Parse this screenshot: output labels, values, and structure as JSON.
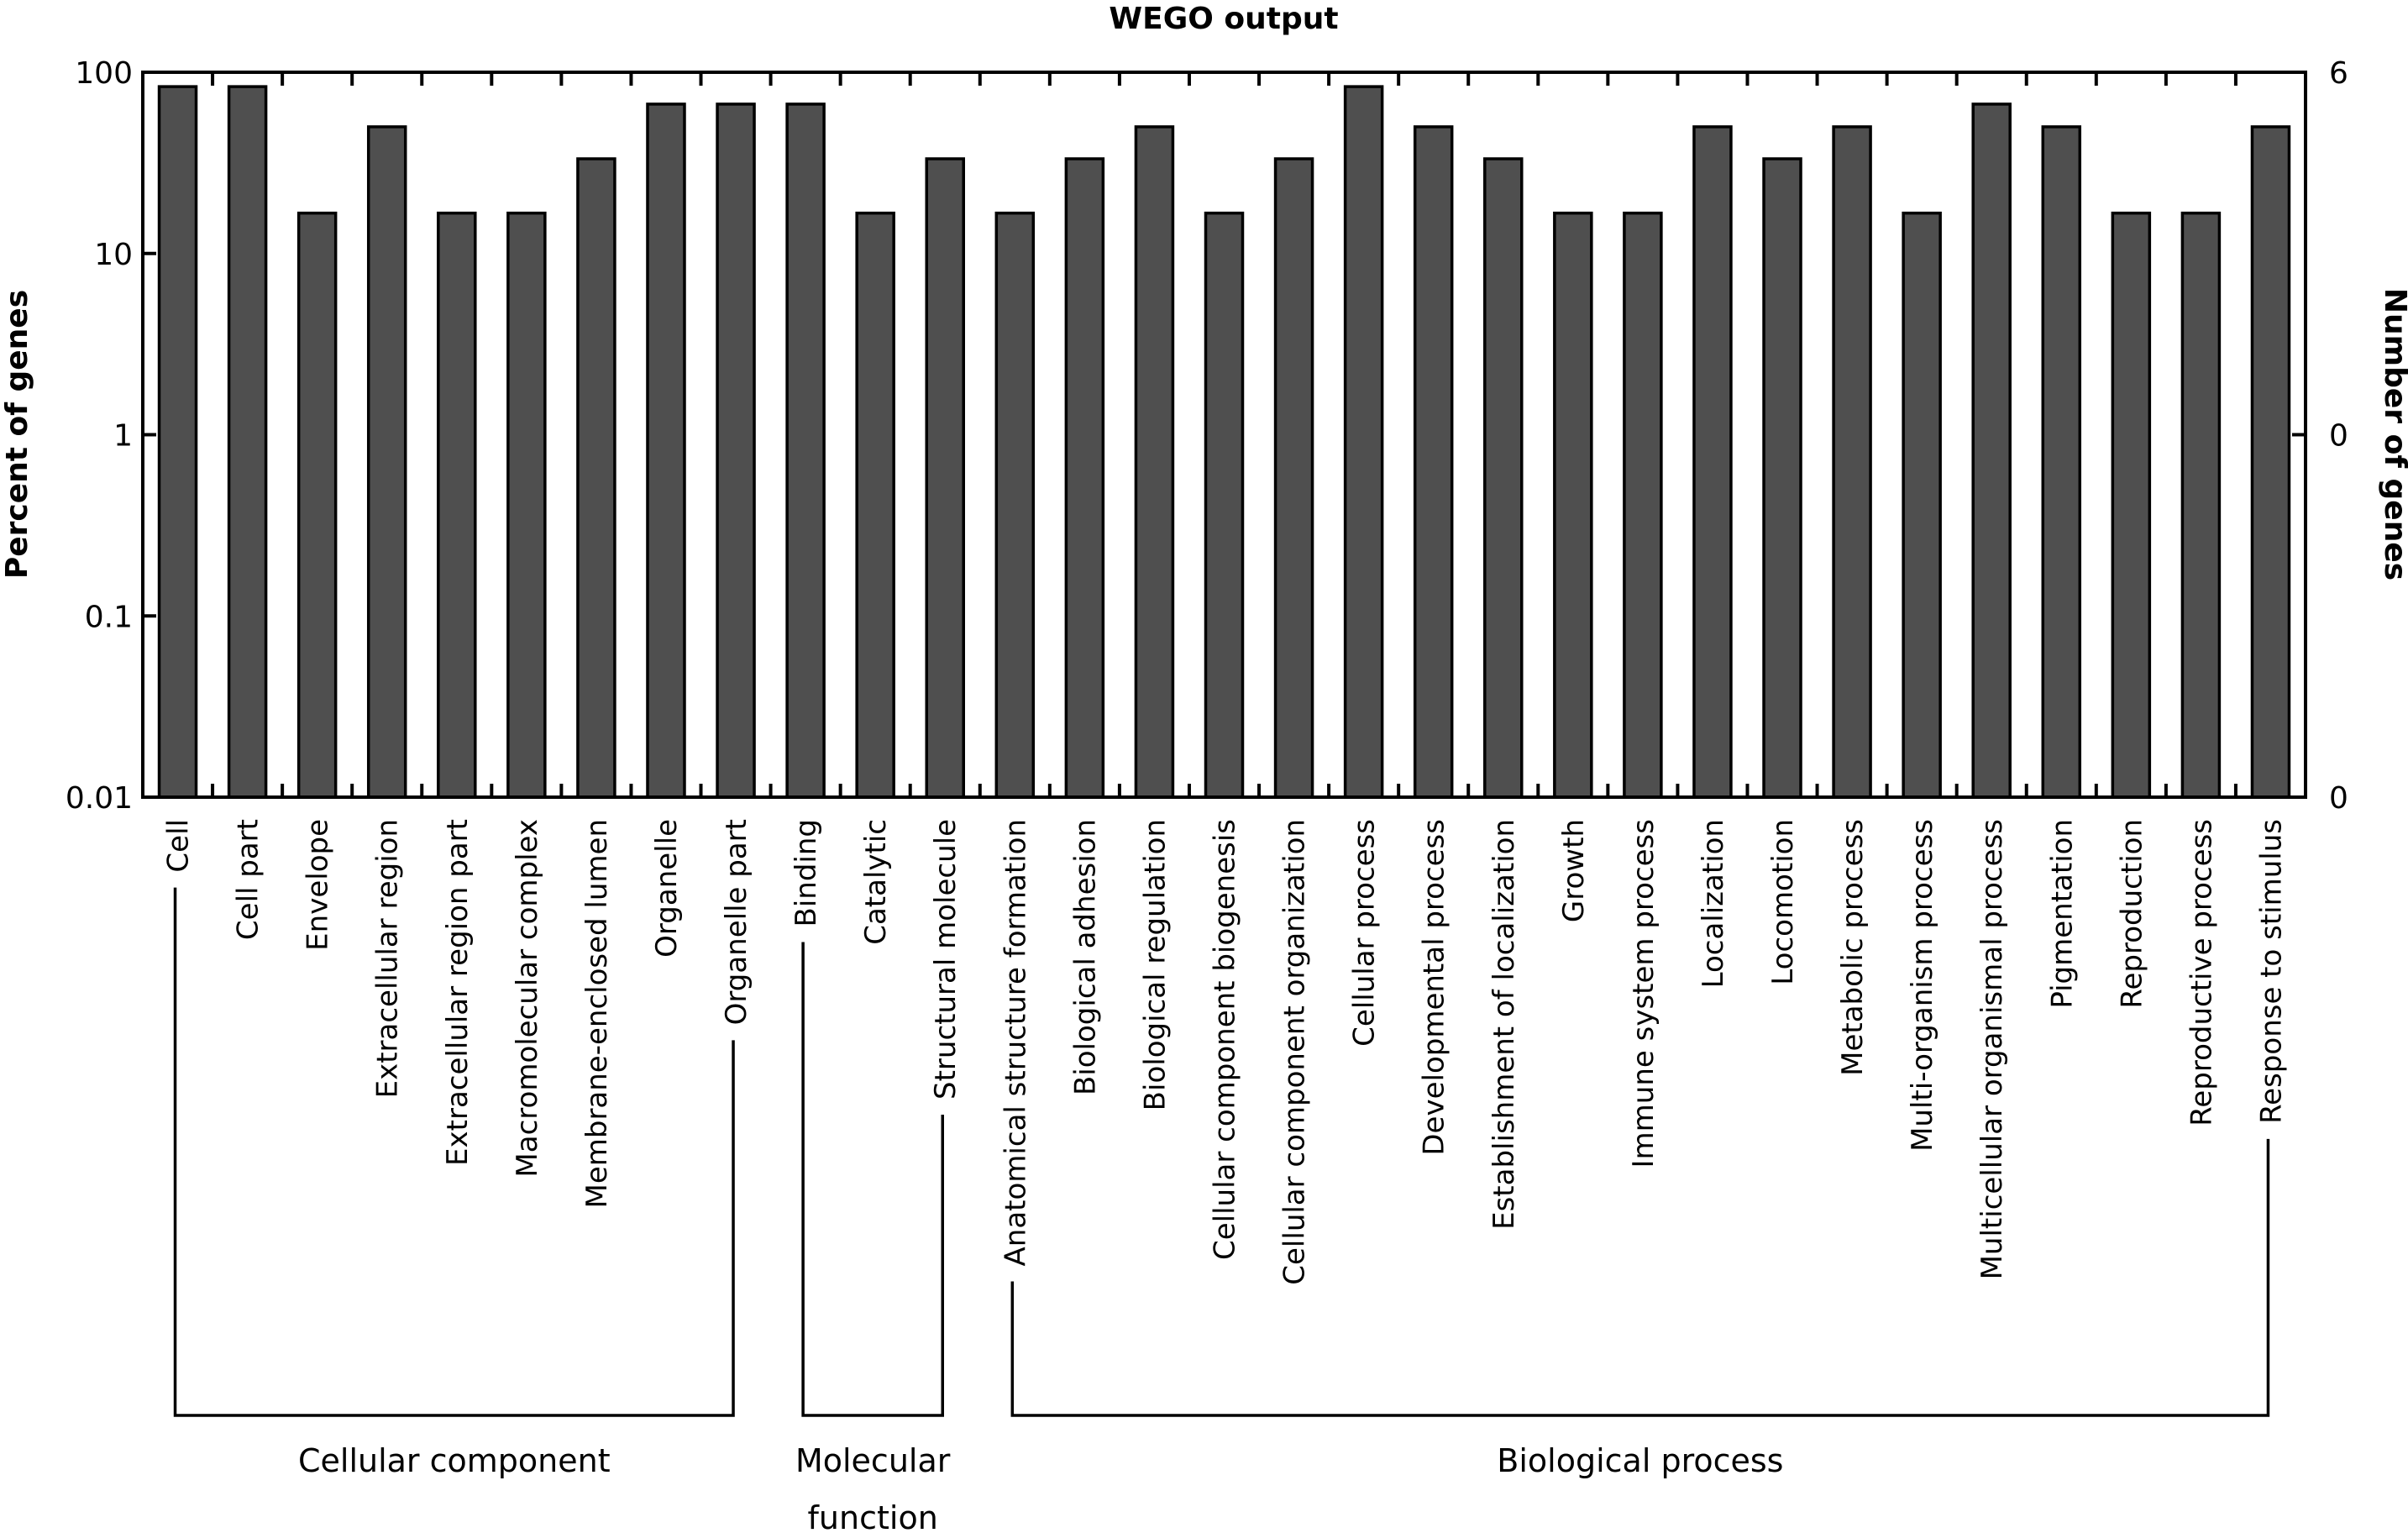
{
  "chart_data": {
    "type": "bar",
    "title": "WEGO output",
    "ylabel": "Percent of genes",
    "ylabel_right": "Number of genes",
    "yscale": "log",
    "ylim": [
      0.01,
      100
    ],
    "yticks": [
      {
        "value": 100,
        "label": "100"
      },
      {
        "value": 10,
        "label": "10"
      },
      {
        "value": 1,
        "label": "1"
      },
      {
        "value": 0.1,
        "label": "0.1"
      },
      {
        "value": 0.01,
        "label": "0.01"
      }
    ],
    "right_ticks": [
      {
        "at_percent": 100,
        "label": "6"
      },
      {
        "at_percent": 1,
        "label": "0"
      },
      {
        "at_percent": 0.01,
        "label": "0"
      }
    ],
    "total_genes": 6,
    "bar_color": "#4f4f4f",
    "categories": [
      "Cell",
      "Cell part",
      "Envelope",
      "Extracellular region",
      "Extracellular region part",
      "Macromolecular complex",
      "Membrane-enclosed lumen",
      "Organelle",
      "Organelle part",
      "Binding",
      "Catalytic",
      "Structural molecule",
      "Anatomical structure formation",
      "Biological adhesion",
      "Biological regulation",
      "Cellular component biogenesis",
      "Cellular component organization",
      "Cellular process",
      "Developmental process",
      "Establishment of localization",
      "Growth",
      "Immune system process",
      "Localization",
      "Locomotion",
      "Metabolic process",
      "Multi-organism process",
      "Multicellular organismal process",
      "Pigmentation",
      "Reproduction",
      "Reproductive process",
      "Response to stimulus"
    ],
    "gene_counts": [
      5,
      5,
      1,
      3,
      1,
      1,
      2,
      4,
      4,
      4,
      1,
      2,
      1,
      2,
      3,
      1,
      2,
      5,
      3,
      2,
      1,
      1,
      3,
      2,
      3,
      1,
      4,
      3,
      1,
      1,
      3
    ],
    "values": [
      83.3,
      83.3,
      16.7,
      50.0,
      16.7,
      16.7,
      33.3,
      66.7,
      66.7,
      66.7,
      16.7,
      33.3,
      16.7,
      33.3,
      50.0,
      16.7,
      33.3,
      83.3,
      50.0,
      33.3,
      16.7,
      16.7,
      50.0,
      33.3,
      50.0,
      16.7,
      66.7,
      50.0,
      16.7,
      16.7,
      50.0
    ],
    "groups": [
      {
        "name_lines": [
          "Cellular component"
        ],
        "first": 0,
        "last": 8
      },
      {
        "name_lines": [
          "Molecular",
          "function"
        ],
        "first": 9,
        "last": 11
      },
      {
        "name_lines": [
          "Biological process"
        ],
        "first": 12,
        "last": 30
      }
    ],
    "grid": false,
    "legend": "none"
  }
}
